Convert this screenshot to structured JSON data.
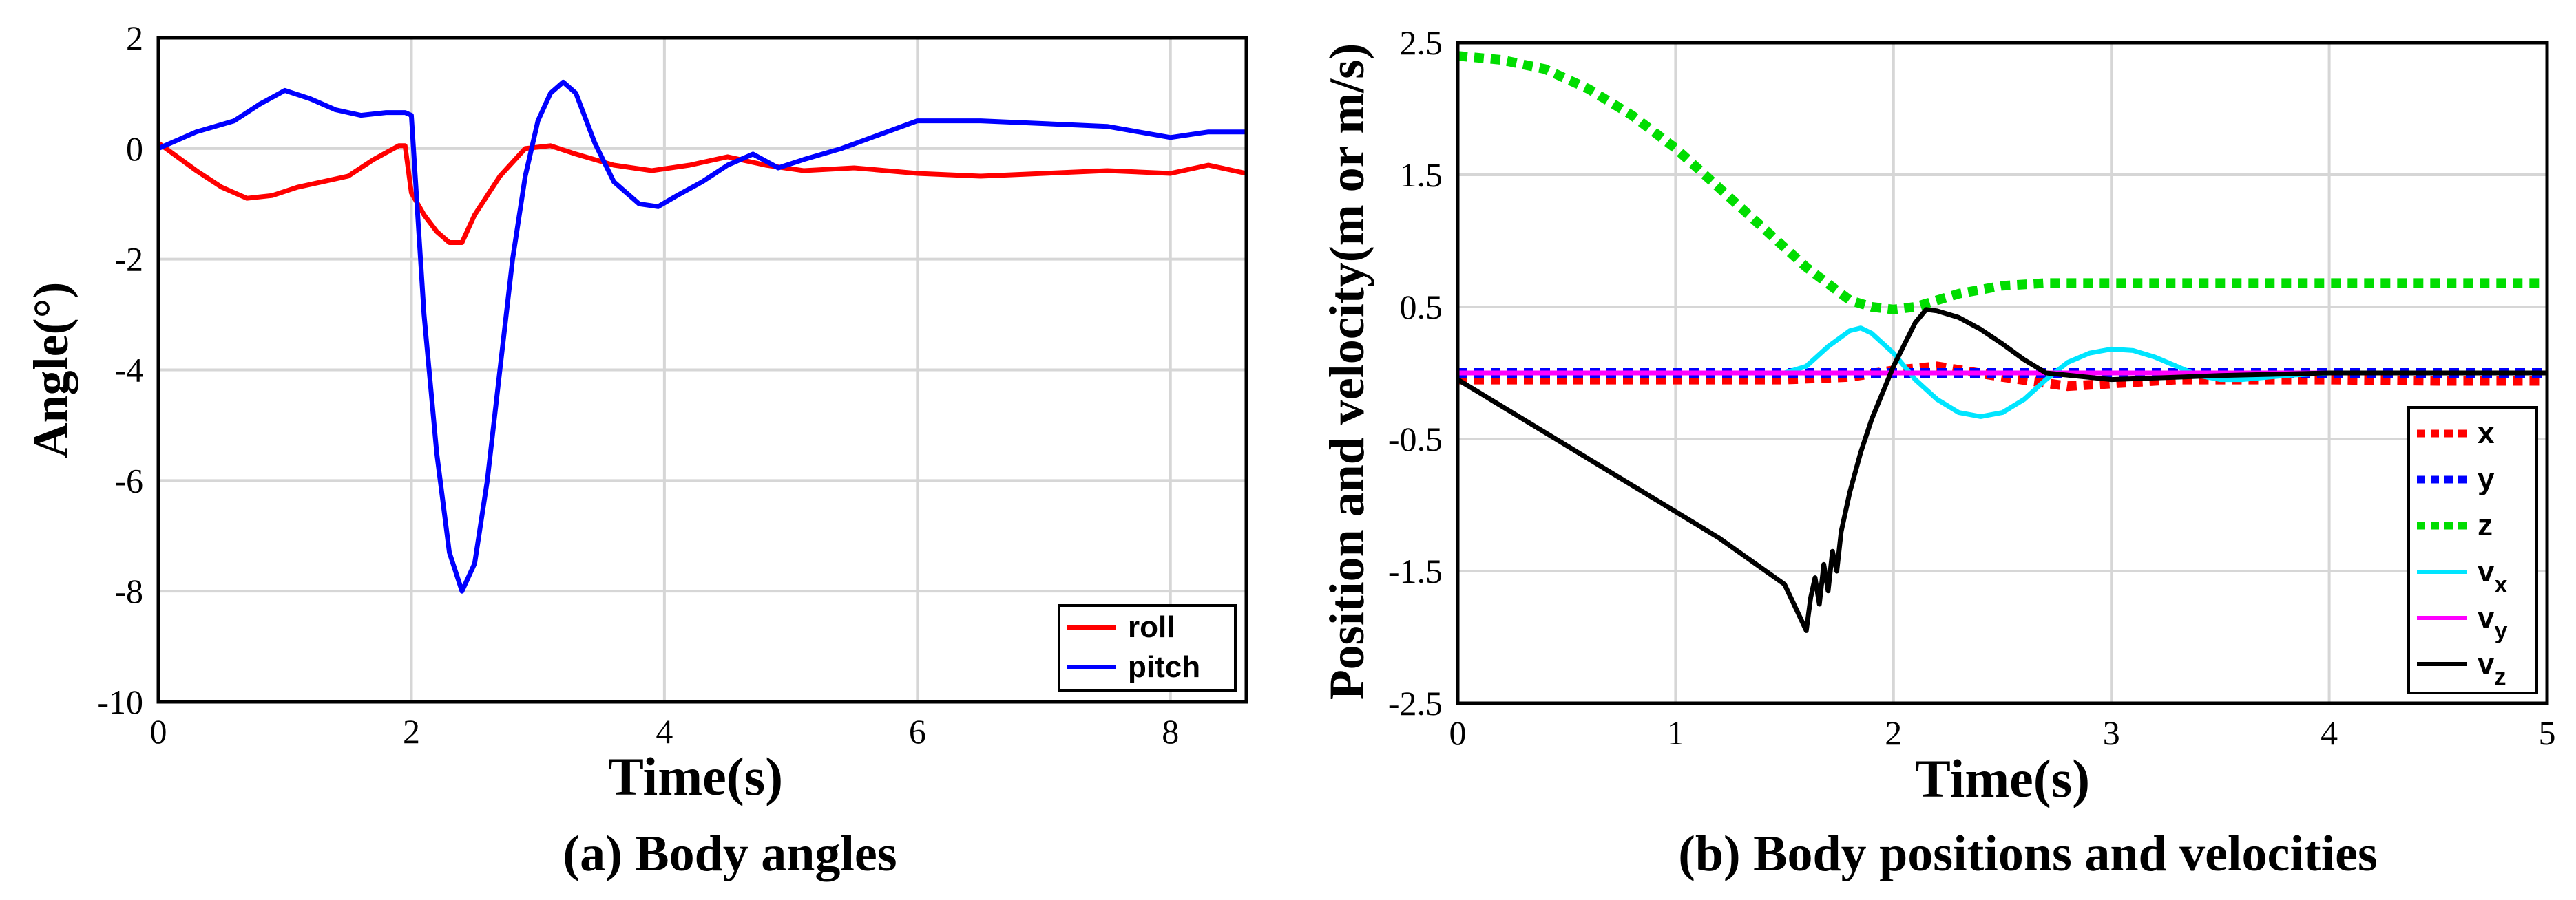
{
  "chart_data": [
    {
      "type": "line",
      "title": "",
      "caption": "(a) Body angles",
      "xlabel": "Time(s)",
      "ylabel": "Angle(°)",
      "xlim": [
        0,
        8.6
      ],
      "ylim": [
        -10,
        2
      ],
      "xticks": [
        0,
        2,
        4,
        6,
        8
      ],
      "yticks": [
        2,
        0,
        -2,
        -4,
        -6,
        -8,
        -10
      ],
      "ytick_labels": [
        "2",
        "0",
        "-2",
        "-4",
        "-6",
        "-8",
        "-10"
      ],
      "grid": true,
      "legend_position": "bottom-right",
      "series": [
        {
          "name": "roll",
          "color": "#ff0000",
          "style": "solid",
          "x": [
            0,
            0.3,
            0.5,
            0.7,
            0.9,
            1.1,
            1.3,
            1.5,
            1.7,
            1.9,
            1.95,
            2.0,
            2.1,
            2.2,
            2.3,
            2.4,
            2.5,
            2.7,
            2.9,
            3.1,
            3.3,
            3.6,
            3.9,
            4.2,
            4.5,
            4.8,
            5.1,
            5.5,
            6.0,
            6.5,
            7.0,
            7.5,
            8.0,
            8.3,
            8.6
          ],
          "values": [
            0.1,
            -0.4,
            -0.7,
            -0.9,
            -0.85,
            -0.7,
            -0.6,
            -0.5,
            -0.2,
            0.05,
            0.05,
            -0.8,
            -1.2,
            -1.5,
            -1.7,
            -1.7,
            -1.2,
            -0.5,
            0.0,
            0.05,
            -0.1,
            -0.3,
            -0.4,
            -0.3,
            -0.15,
            -0.3,
            -0.4,
            -0.35,
            -0.45,
            -0.5,
            -0.45,
            -0.4,
            -0.45,
            -0.3,
            -0.45
          ]
        },
        {
          "name": "pitch",
          "color": "#0000ff",
          "style": "solid",
          "x": [
            0,
            0.3,
            0.6,
            0.8,
            1.0,
            1.2,
            1.4,
            1.6,
            1.8,
            1.95,
            2.0,
            2.1,
            2.2,
            2.3,
            2.4,
            2.5,
            2.6,
            2.7,
            2.8,
            2.9,
            3.0,
            3.1,
            3.2,
            3.3,
            3.45,
            3.6,
            3.8,
            3.95,
            4.1,
            4.3,
            4.5,
            4.7,
            4.9,
            5.1,
            5.4,
            5.7,
            6.0,
            6.5,
            7.0,
            7.5,
            8.0,
            8.3,
            8.6
          ],
          "values": [
            0.0,
            0.3,
            0.5,
            0.8,
            1.05,
            0.9,
            0.7,
            0.6,
            0.65,
            0.65,
            0.6,
            -3.0,
            -5.5,
            -7.3,
            -8.0,
            -7.5,
            -6.0,
            -4.0,
            -2.0,
            -0.5,
            0.5,
            1.0,
            1.2,
            1.0,
            0.1,
            -0.6,
            -1.0,
            -1.05,
            -0.85,
            -0.6,
            -0.3,
            -0.1,
            -0.35,
            -0.2,
            0.0,
            0.25,
            0.5,
            0.5,
            0.45,
            0.4,
            0.2,
            0.3,
            0.3
          ]
        }
      ]
    },
    {
      "type": "line",
      "title": "",
      "caption": "(b) Body positions and velocities",
      "xlabel": "Time(s)",
      "ylabel": "Position and velocity(m or m/s)",
      "xlim": [
        0,
        5
      ],
      "ylim": [
        -2.5,
        2.5
      ],
      "xticks": [
        0,
        1,
        2,
        3,
        4,
        5
      ],
      "yticks": [
        2.5,
        1.5,
        0.5,
        -0.5,
        -1.5,
        -2.5
      ],
      "ytick_labels": [
        "2.5",
        "1.5",
        "0.5",
        "-0.5",
        "-1.5",
        "-2.5"
      ],
      "grid": true,
      "legend_position": "bottom-right",
      "series": [
        {
          "name": "x",
          "color": "#ff0000",
          "style": "dotted",
          "x": [
            0,
            0.5,
            1.0,
            1.5,
            1.8,
            2.0,
            2.2,
            2.5,
            2.8,
            3.0,
            3.3,
            3.6,
            4.0,
            4.5,
            5.0
          ],
          "values": [
            -0.05,
            -0.05,
            -0.05,
            -0.05,
            -0.03,
            0.02,
            0.05,
            -0.03,
            -0.1,
            -0.08,
            -0.05,
            -0.05,
            -0.05,
            -0.06,
            -0.06
          ]
        },
        {
          "name": "y",
          "color": "#0000ff",
          "style": "dotted",
          "x": [
            0,
            1,
            2,
            3,
            4,
            5
          ],
          "values": [
            0.0,
            0.0,
            0.0,
            0.0,
            0.0,
            0.0
          ]
        },
        {
          "name": "z",
          "color": "#00dd00",
          "style": "dotted",
          "x": [
            0,
            0.2,
            0.4,
            0.6,
            0.8,
            1.0,
            1.2,
            1.4,
            1.6,
            1.8,
            1.9,
            2.0,
            2.1,
            2.3,
            2.5,
            2.7,
            3.0,
            3.5,
            4.0,
            4.5,
            5.0
          ],
          "values": [
            2.4,
            2.37,
            2.3,
            2.15,
            1.95,
            1.7,
            1.4,
            1.1,
            0.8,
            0.55,
            0.5,
            0.48,
            0.5,
            0.6,
            0.66,
            0.68,
            0.68,
            0.68,
            0.68,
            0.68,
            0.68
          ]
        },
        {
          "name": "v",
          "subscript": "x",
          "color": "#00e5ff",
          "style": "solid",
          "x": [
            0,
            1.5,
            1.6,
            1.7,
            1.8,
            1.85,
            1.9,
            2.0,
            2.1,
            2.2,
            2.3,
            2.4,
            2.5,
            2.6,
            2.7,
            2.8,
            2.9,
            3.0,
            3.1,
            3.2,
            3.3,
            3.4,
            3.5,
            3.6,
            3.8,
            4.0,
            4.5,
            5.0
          ],
          "values": [
            0.0,
            0.0,
            0.05,
            0.2,
            0.32,
            0.34,
            0.3,
            0.15,
            -0.05,
            -0.2,
            -0.3,
            -0.33,
            -0.3,
            -0.2,
            -0.05,
            0.08,
            0.15,
            0.18,
            0.17,
            0.12,
            0.05,
            -0.02,
            -0.05,
            -0.05,
            -0.02,
            0.0,
            0.0,
            0.0
          ]
        },
        {
          "name": "v",
          "subscript": "y",
          "color": "#ff00ff",
          "style": "solid",
          "x": [
            0,
            1,
            2,
            3,
            4,
            5
          ],
          "values": [
            0.0,
            0.0,
            0.0,
            0.0,
            0.0,
            0.0
          ]
        },
        {
          "name": "v",
          "subscript": "z",
          "color": "#000000",
          "style": "solid",
          "x": [
            0,
            0.1,
            0.4,
            0.8,
            1.2,
            1.5,
            1.6,
            1.62,
            1.64,
            1.66,
            1.68,
            1.7,
            1.72,
            1.74,
            1.76,
            1.8,
            1.85,
            1.9,
            1.95,
            2.0,
            2.1,
            2.15,
            2.2,
            2.3,
            2.4,
            2.5,
            2.6,
            2.7,
            3.0,
            3.5,
            4.0,
            4.5,
            5.0
          ],
          "values": [
            -0.05,
            -0.15,
            -0.45,
            -0.85,
            -1.25,
            -1.6,
            -1.95,
            -1.7,
            -1.55,
            -1.75,
            -1.45,
            -1.65,
            -1.35,
            -1.5,
            -1.2,
            -0.9,
            -0.6,
            -0.35,
            -0.15,
            0.05,
            0.38,
            0.48,
            0.47,
            0.42,
            0.33,
            0.22,
            0.1,
            0.0,
            -0.05,
            -0.02,
            0.0,
            0.0,
            0.0
          ]
        }
      ]
    }
  ]
}
